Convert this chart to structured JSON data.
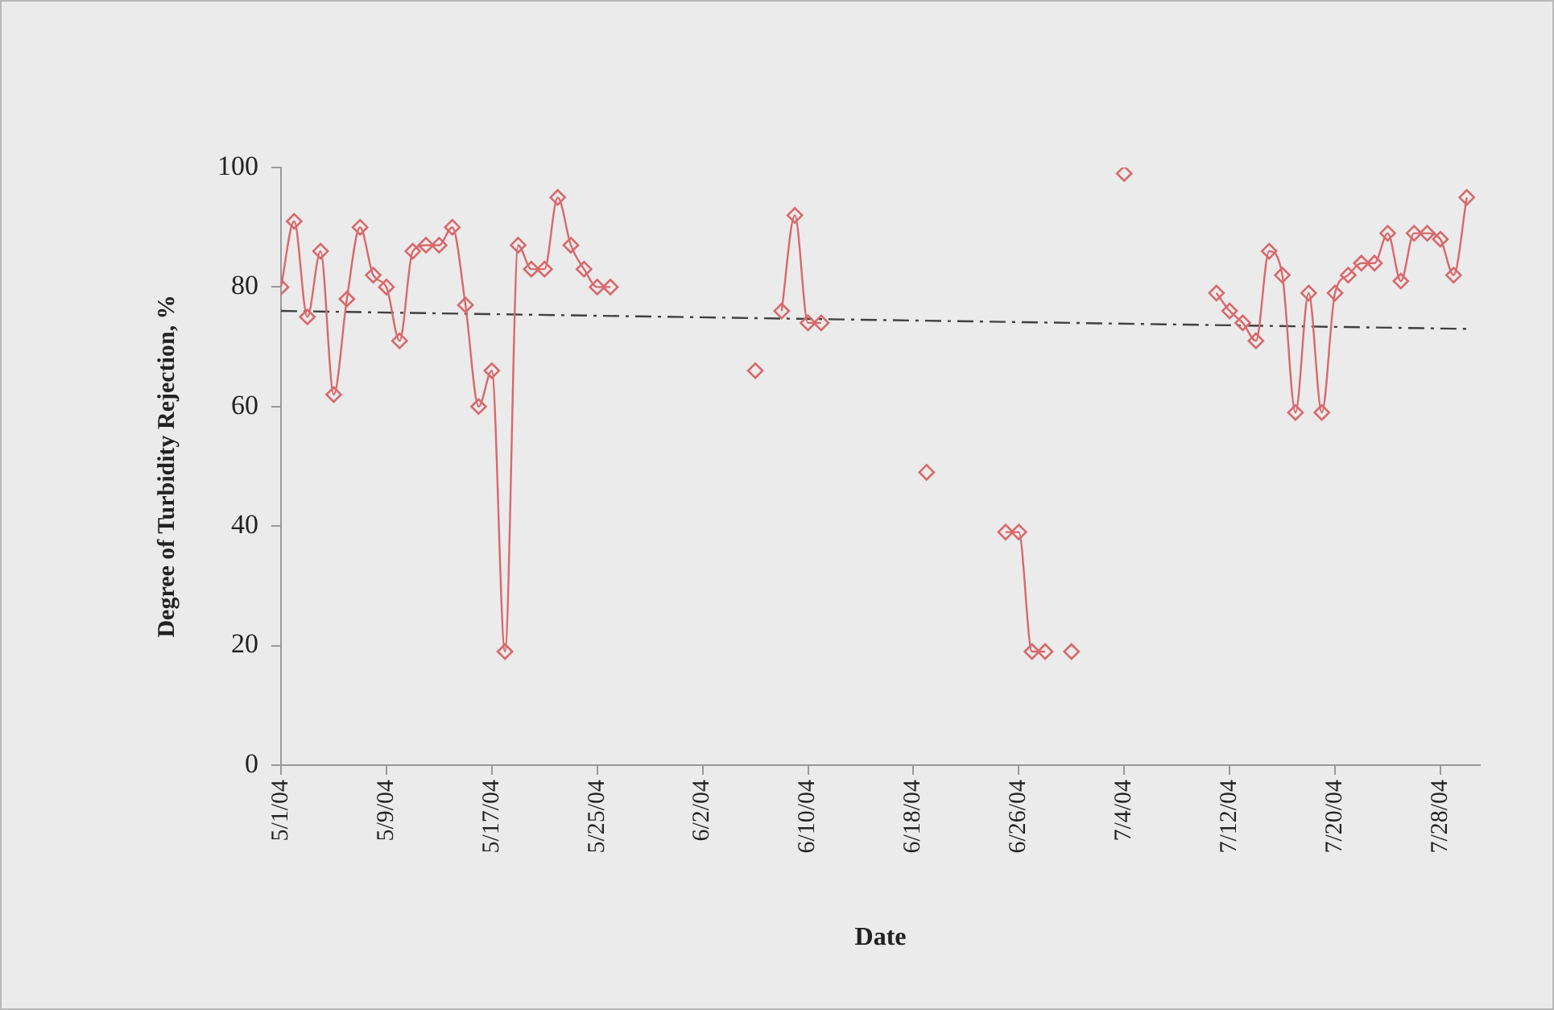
{
  "chart_data": {
    "type": "line",
    "xlabel": "Date",
    "ylabel": "Degree of Turbidity Rejection, %",
    "xlim": [
      "--05-01",
      "--07-31"
    ],
    "xticks": [
      {
        "value": "--05-01",
        "label": "5/1/04"
      },
      {
        "value": "--05-09",
        "label": "5/9/04"
      },
      {
        "value": "--05-17",
        "label": "5/17/04"
      },
      {
        "value": "--05-25",
        "label": "5/25/04"
      },
      {
        "value": "--06-02",
        "label": "6/2/04"
      },
      {
        "value": "--06-10",
        "label": "6/10/04"
      },
      {
        "value": "--06-18",
        "label": "6/18/04"
      },
      {
        "value": "--06-26",
        "label": "6/26/04"
      },
      {
        "value": "--07-04",
        "label": "7/4/04"
      },
      {
        "value": "--07-12",
        "label": "7/12/04"
      },
      {
        "value": "--07-20",
        "label": "7/20/04"
      },
      {
        "value": "--07-28",
        "label": "7/28/04"
      }
    ],
    "ylim": [
      0,
      100
    ],
    "yticks": [
      0,
      20,
      40,
      60,
      80,
      100
    ],
    "grid": false,
    "legend": false,
    "series": [
      {
        "color": "#d9686b",
        "marker": "diamond",
        "x": [
          "--05-01",
          "--05-02",
          "--05-03",
          "--05-04",
          "--05-05",
          "--05-06",
          "--05-07",
          "--05-08",
          "--05-09",
          "--05-10",
          "--05-11",
          "--05-12",
          "--05-13",
          "--05-14",
          "--05-15",
          "--05-16",
          "--05-17",
          "--05-18",
          "--05-19",
          "--05-20",
          "--05-21",
          "--05-22",
          "--05-23",
          "--05-24",
          "--05-25",
          "--05-26",
          "--05-27",
          "--06-06",
          "--06-07",
          "--06-08",
          "--06-09",
          "--06-10",
          "--06-11",
          "--06-12",
          "--06-19",
          "--06-20",
          "--06-25",
          "--06-26",
          "--06-27",
          "--06-28",
          "--06-29",
          "--06-30",
          "--07-01",
          "--07-04",
          "--07-05",
          "--07-11",
          "--07-12",
          "--07-13",
          "--07-14",
          "--07-15",
          "--07-16",
          "--07-17",
          "--07-18",
          "--07-19",
          "--07-20",
          "--07-21",
          "--07-22",
          "--07-23",
          "--07-24",
          "--07-25",
          "--07-26",
          "--07-27",
          "--07-28",
          "--07-29",
          "--07-30"
        ],
        "values": [
          80,
          91,
          75,
          86,
          62,
          78,
          90,
          82,
          80,
          71,
          86,
          87,
          87,
          90,
          77,
          60,
          66,
          19,
          87,
          83,
          83,
          95,
          87,
          83,
          80,
          80,
          null,
          66,
          null,
          76,
          92,
          74,
          74,
          null,
          49,
          null,
          39,
          39,
          19,
          19,
          null,
          19,
          null,
          99,
          null,
          79,
          76,
          74,
          71,
          86,
          82,
          59,
          79,
          59,
          79,
          82,
          84,
          84,
          89,
          81,
          89,
          89,
          88,
          82,
          95
        ]
      },
      {
        "type": "line",
        "color": "#404040",
        "marker": "none",
        "line_style": "dashed",
        "x": [
          "--05-01",
          "--07-30"
        ],
        "values": [
          76,
          73
        ]
      }
    ]
  }
}
